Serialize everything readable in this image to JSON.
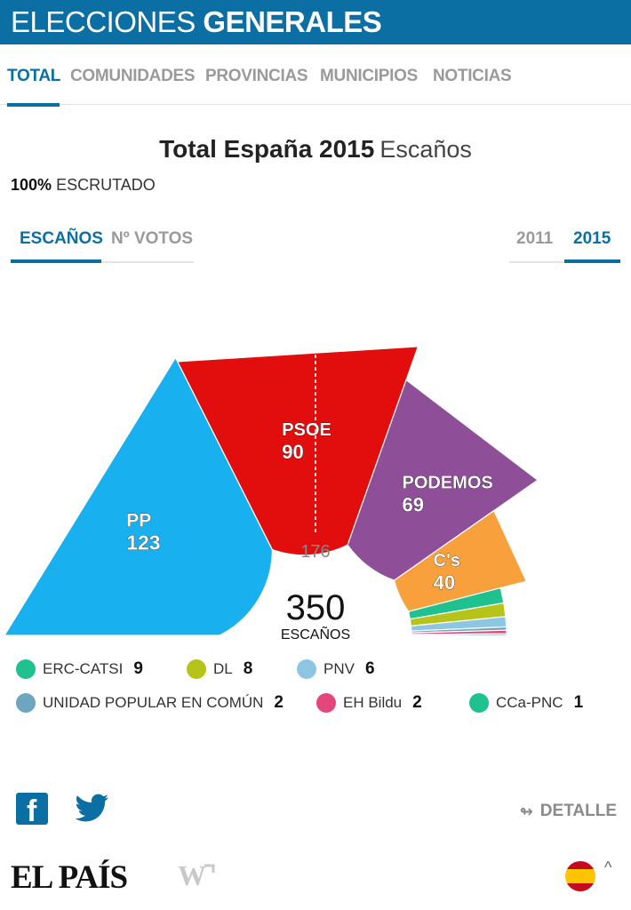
{
  "header": {
    "title_light": "ELECCIONES",
    "title_bold": "GENERALES"
  },
  "nav": {
    "items": [
      "TOTAL",
      "COMUNIDADES",
      "PROVINCIAS",
      "MUNICIPIOS",
      "NOTICIAS"
    ],
    "active": "TOTAL"
  },
  "title": {
    "main": "Total España 2015",
    "sub": "Escaños"
  },
  "scrutiny": {
    "percent": "100%",
    "label": "ESCRUTADO"
  },
  "view_tabs": {
    "seats": "ESCAÑOS",
    "votes": "Nº VOTOS",
    "active": "ESCAÑOS"
  },
  "year_tabs": {
    "y2011": "2011",
    "y2015": "2015",
    "active": "2015"
  },
  "chart_data": {
    "type": "pie",
    "subtype": "hemicycle",
    "title": "Total España 2015 Escaños",
    "total": 350,
    "total_label": "ESCAÑOS",
    "majority": 176,
    "series": [
      {
        "name": "PP",
        "value": 123,
        "color": "#19b0f0"
      },
      {
        "name": "PSOE",
        "value": 90,
        "color": "#e20e0e"
      },
      {
        "name": "PODEMOS",
        "value": 69,
        "color": "#8e4f98"
      },
      {
        "name": "C's",
        "value": 40,
        "color": "#f8a03c"
      },
      {
        "name": "ERC-CATSI",
        "value": 9,
        "color": "#1fc18e"
      },
      {
        "name": "DL",
        "value": 8,
        "color": "#b6c41a"
      },
      {
        "name": "PNV",
        "value": 6,
        "color": "#8cc6e2"
      },
      {
        "name": "UNIDAD POPULAR EN COMÚN",
        "value": 2,
        "color": "#6fa6bf"
      },
      {
        "name": "EH Bildu",
        "value": 2,
        "color": "#e4457a"
      },
      {
        "name": "CCa-PNC",
        "value": 1,
        "color": "#1fc18e"
      }
    ]
  },
  "legend": [
    {
      "name": "ERC-CATSI",
      "value": "9",
      "color": "#1fc18e"
    },
    {
      "name": "DL",
      "value": "8",
      "color": "#b6c41a"
    },
    {
      "name": "PNV",
      "value": "6",
      "color": "#8cc6e2"
    },
    {
      "name": "UNIDAD POPULAR EN COMÚN",
      "value": "2",
      "color": "#6fa6bf"
    },
    {
      "name": "EH Bildu",
      "value": "2",
      "color": "#e4457a"
    },
    {
      "name": "CCa-PNC",
      "value": "1",
      "color": "#1fc18e"
    }
  ],
  "footer": {
    "social": [
      "facebook-icon",
      "twitter-icon"
    ],
    "detalle": "DETALLE",
    "logo": "EL PAÍS",
    "flag": "spain-flag-icon"
  }
}
